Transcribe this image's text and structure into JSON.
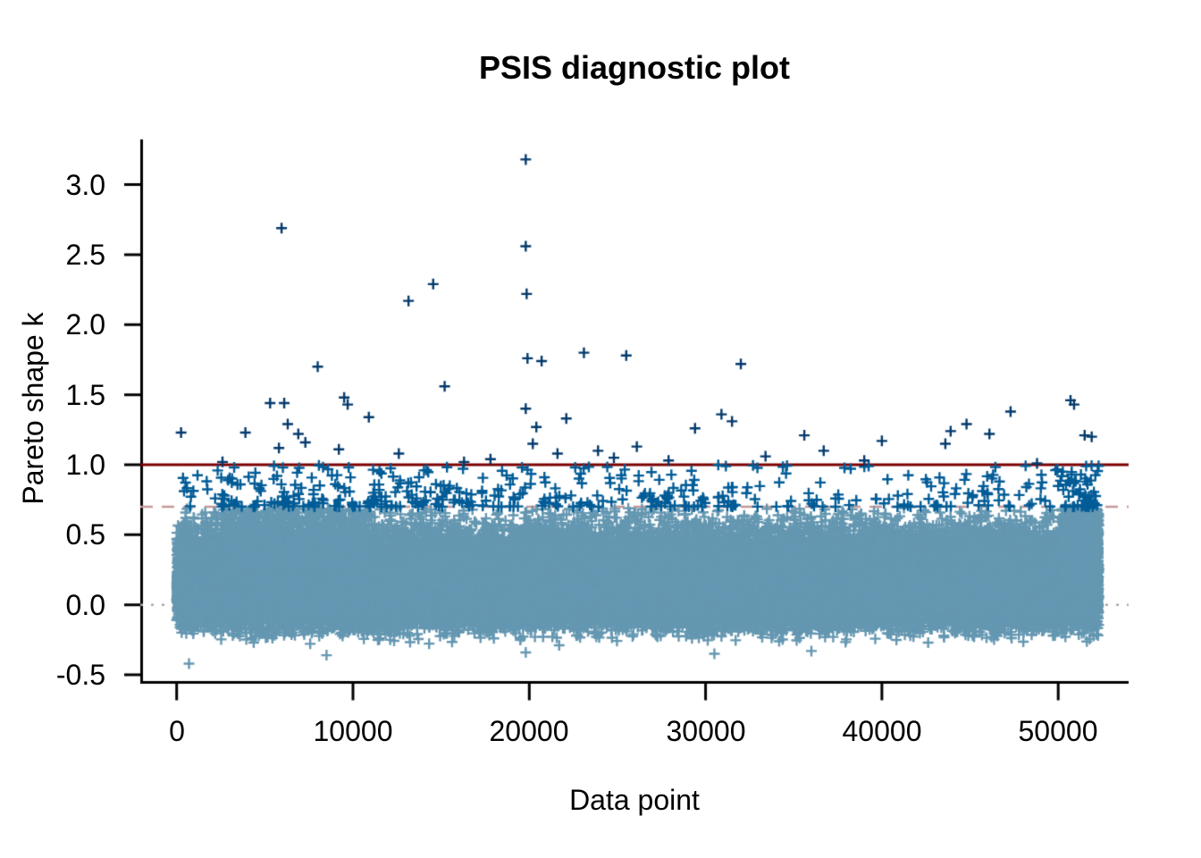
{
  "chart_data": {
    "type": "scatter",
    "title": "PSIS diagnostic plot",
    "xlabel": "Data point",
    "ylabel": "Pareto shape k",
    "x_ticks": [
      "0",
      "10000",
      "20000",
      "30000",
      "40000",
      "50000"
    ],
    "y_ticks": [
      "-0.5",
      "0.0",
      "0.5",
      "1.0",
      "1.5",
      "2.0",
      "2.5",
      "3.0"
    ],
    "xlim": [
      -2000,
      54000
    ],
    "ylim": [
      -0.61,
      3.33
    ],
    "n_points_approx": 52300,
    "marker": "plus",
    "grid": false,
    "legend": "none",
    "reference_lines": [
      {
        "k": 0.0,
        "style": "dotted",
        "color": "#A9A9A9"
      },
      {
        "k": 0.7,
        "style": "dashed",
        "color": "#C79999"
      },
      {
        "k": 1.0,
        "style": "solid",
        "color": "#7C0000"
      }
    ],
    "point_colors": {
      "k_le_0_7": "#6497b1",
      "k_0_7_to_1": "#005b96",
      "k_gt_1": "#03396c"
    },
    "bulk": {
      "count": 52300,
      "x_min": 0,
      "x_max": 52300,
      "k_mode": 0.12,
      "k_spread_up": 0.185,
      "k_spread_down": 0.125,
      "k_max": 0.695,
      "k_min": -0.43,
      "uniform_fringe_fraction": 0.02,
      "uniform_fringe_range": [
        0.3,
        0.69
      ]
    },
    "extra_light_clusters": [
      {
        "x": [
          50200,
          52300
        ],
        "count": 900,
        "k": [
          0.15,
          0.69
        ]
      },
      {
        "x": [
          2500,
          11000
        ],
        "count": 600,
        "k": [
          0.25,
          0.69
        ]
      }
    ],
    "medium_band": {
      "k_min": 0.7,
      "k_max": 1.0,
      "k_exponent": 2.0,
      "segments": [
        {
          "x": [
            0,
            2500
          ],
          "count": 12
        },
        {
          "x": [
            2500,
            15500
          ],
          "count": 160
        },
        {
          "x": [
            15500,
            28000
          ],
          "count": 110
        },
        {
          "x": [
            28000,
            34000
          ],
          "count": 45
        },
        {
          "x": [
            34000,
            42500
          ],
          "count": 40
        },
        {
          "x": [
            42500,
            46500
          ],
          "count": 32
        },
        {
          "x": [
            46500,
            50200
          ],
          "count": 22
        },
        {
          "x": [
            50200,
            52300
          ],
          "count": 55
        }
      ]
    },
    "outliers_k_gt_1": [
      [
        250,
        1.23
      ],
      [
        2600,
        1.02
      ],
      [
        3900,
        1.23
      ],
      [
        5300,
        1.44
      ],
      [
        5800,
        1.12
      ],
      [
        5950,
        2.69
      ],
      [
        6100,
        1.44
      ],
      [
        6300,
        1.29
      ],
      [
        6900,
        1.22
      ],
      [
        7300,
        1.16
      ],
      [
        8000,
        1.7
      ],
      [
        9200,
        1.11
      ],
      [
        9500,
        1.48
      ],
      [
        9700,
        1.43
      ],
      [
        10900,
        1.34
      ],
      [
        12600,
        1.08
      ],
      [
        13150,
        2.17
      ],
      [
        14550,
        2.29
      ],
      [
        15200,
        1.56
      ],
      [
        16300,
        1.02
      ],
      [
        17800,
        1.04
      ],
      [
        19800,
        3.18
      ],
      [
        19800,
        2.56
      ],
      [
        19850,
        2.22
      ],
      [
        19900,
        1.76
      ],
      [
        19800,
        1.4
      ],
      [
        20200,
        1.15
      ],
      [
        20400,
        1.27
      ],
      [
        20700,
        1.74
      ],
      [
        21600,
        1.08
      ],
      [
        22100,
        1.33
      ],
      [
        23100,
        1.8
      ],
      [
        23900,
        1.1
      ],
      [
        24800,
        1.05
      ],
      [
        25500,
        1.78
      ],
      [
        26100,
        1.13
      ],
      [
        27900,
        1.03
      ],
      [
        29400,
        1.26
      ],
      [
        30900,
        1.36
      ],
      [
        31500,
        1.31
      ],
      [
        32000,
        1.72
      ],
      [
        33400,
        1.06
      ],
      [
        35600,
        1.21
      ],
      [
        36700,
        1.1
      ],
      [
        39000,
        1.03
      ],
      [
        40000,
        1.17
      ],
      [
        43600,
        1.15
      ],
      [
        43900,
        1.24
      ],
      [
        44800,
        1.29
      ],
      [
        46100,
        1.22
      ],
      [
        47300,
        1.38
      ],
      [
        48800,
        1.01
      ],
      [
        50700,
        1.46
      ],
      [
        50900,
        1.43
      ],
      [
        51500,
        1.21
      ],
      [
        51900,
        1.2
      ]
    ],
    "low_outliers": [
      [
        700,
        -0.42
      ],
      [
        8500,
        -0.36
      ],
      [
        19800,
        -0.34
      ],
      [
        30500,
        -0.35
      ],
      [
        36000,
        -0.33
      ]
    ]
  }
}
